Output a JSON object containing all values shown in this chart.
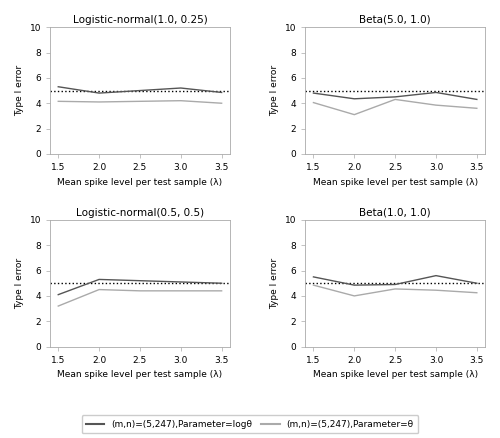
{
  "subplots": [
    {
      "title": "Logistic-normal(1.0, 0.25)",
      "x": [
        1.5,
        2.0,
        2.5,
        3.0,
        3.5
      ],
      "y_dark": [
        5.3,
        4.8,
        5.0,
        5.2,
        4.85
      ],
      "y_light": [
        4.15,
        4.1,
        4.15,
        4.2,
        4.0
      ]
    },
    {
      "title": "Beta(5.0, 1.0)",
      "x": [
        1.5,
        2.0,
        2.5,
        3.0,
        3.5
      ],
      "y_dark": [
        4.8,
        4.35,
        4.5,
        4.85,
        4.3
      ],
      "y_light": [
        4.05,
        3.1,
        4.3,
        3.85,
        3.6
      ]
    },
    {
      "title": "Logistic-normal(0.5, 0.5)",
      "x": [
        1.5,
        2.0,
        2.5,
        3.0,
        3.5
      ],
      "y_dark": [
        4.1,
        5.3,
        5.2,
        5.1,
        5.0
      ],
      "y_light": [
        3.2,
        4.5,
        4.4,
        4.4,
        4.4
      ]
    },
    {
      "title": "Beta(1.0, 1.0)",
      "x": [
        1.5,
        2.0,
        2.5,
        3.0,
        3.5
      ],
      "y_dark": [
        5.5,
        4.85,
        4.9,
        5.6,
        5.0
      ],
      "y_light": [
        4.85,
        4.0,
        4.55,
        4.45,
        4.25
      ]
    }
  ],
  "xlabel": "Mean spike level per test sample (λ)",
  "ylabel": "Type I error",
  "ylim": [
    0,
    10
  ],
  "yticks": [
    0,
    2,
    4,
    6,
    8,
    10
  ],
  "xticks": [
    1.5,
    2.0,
    2.5,
    3.0,
    3.5
  ],
  "hline_y": 5.0,
  "color_dark": "#555555",
  "color_light": "#aaaaaa",
  "legend_dark_label": "(m,n)=(5,247),Parameter=logθ",
  "legend_light_label": "(m,n)=(5,247),Parameter=θ",
  "background_color": "#ffffff"
}
